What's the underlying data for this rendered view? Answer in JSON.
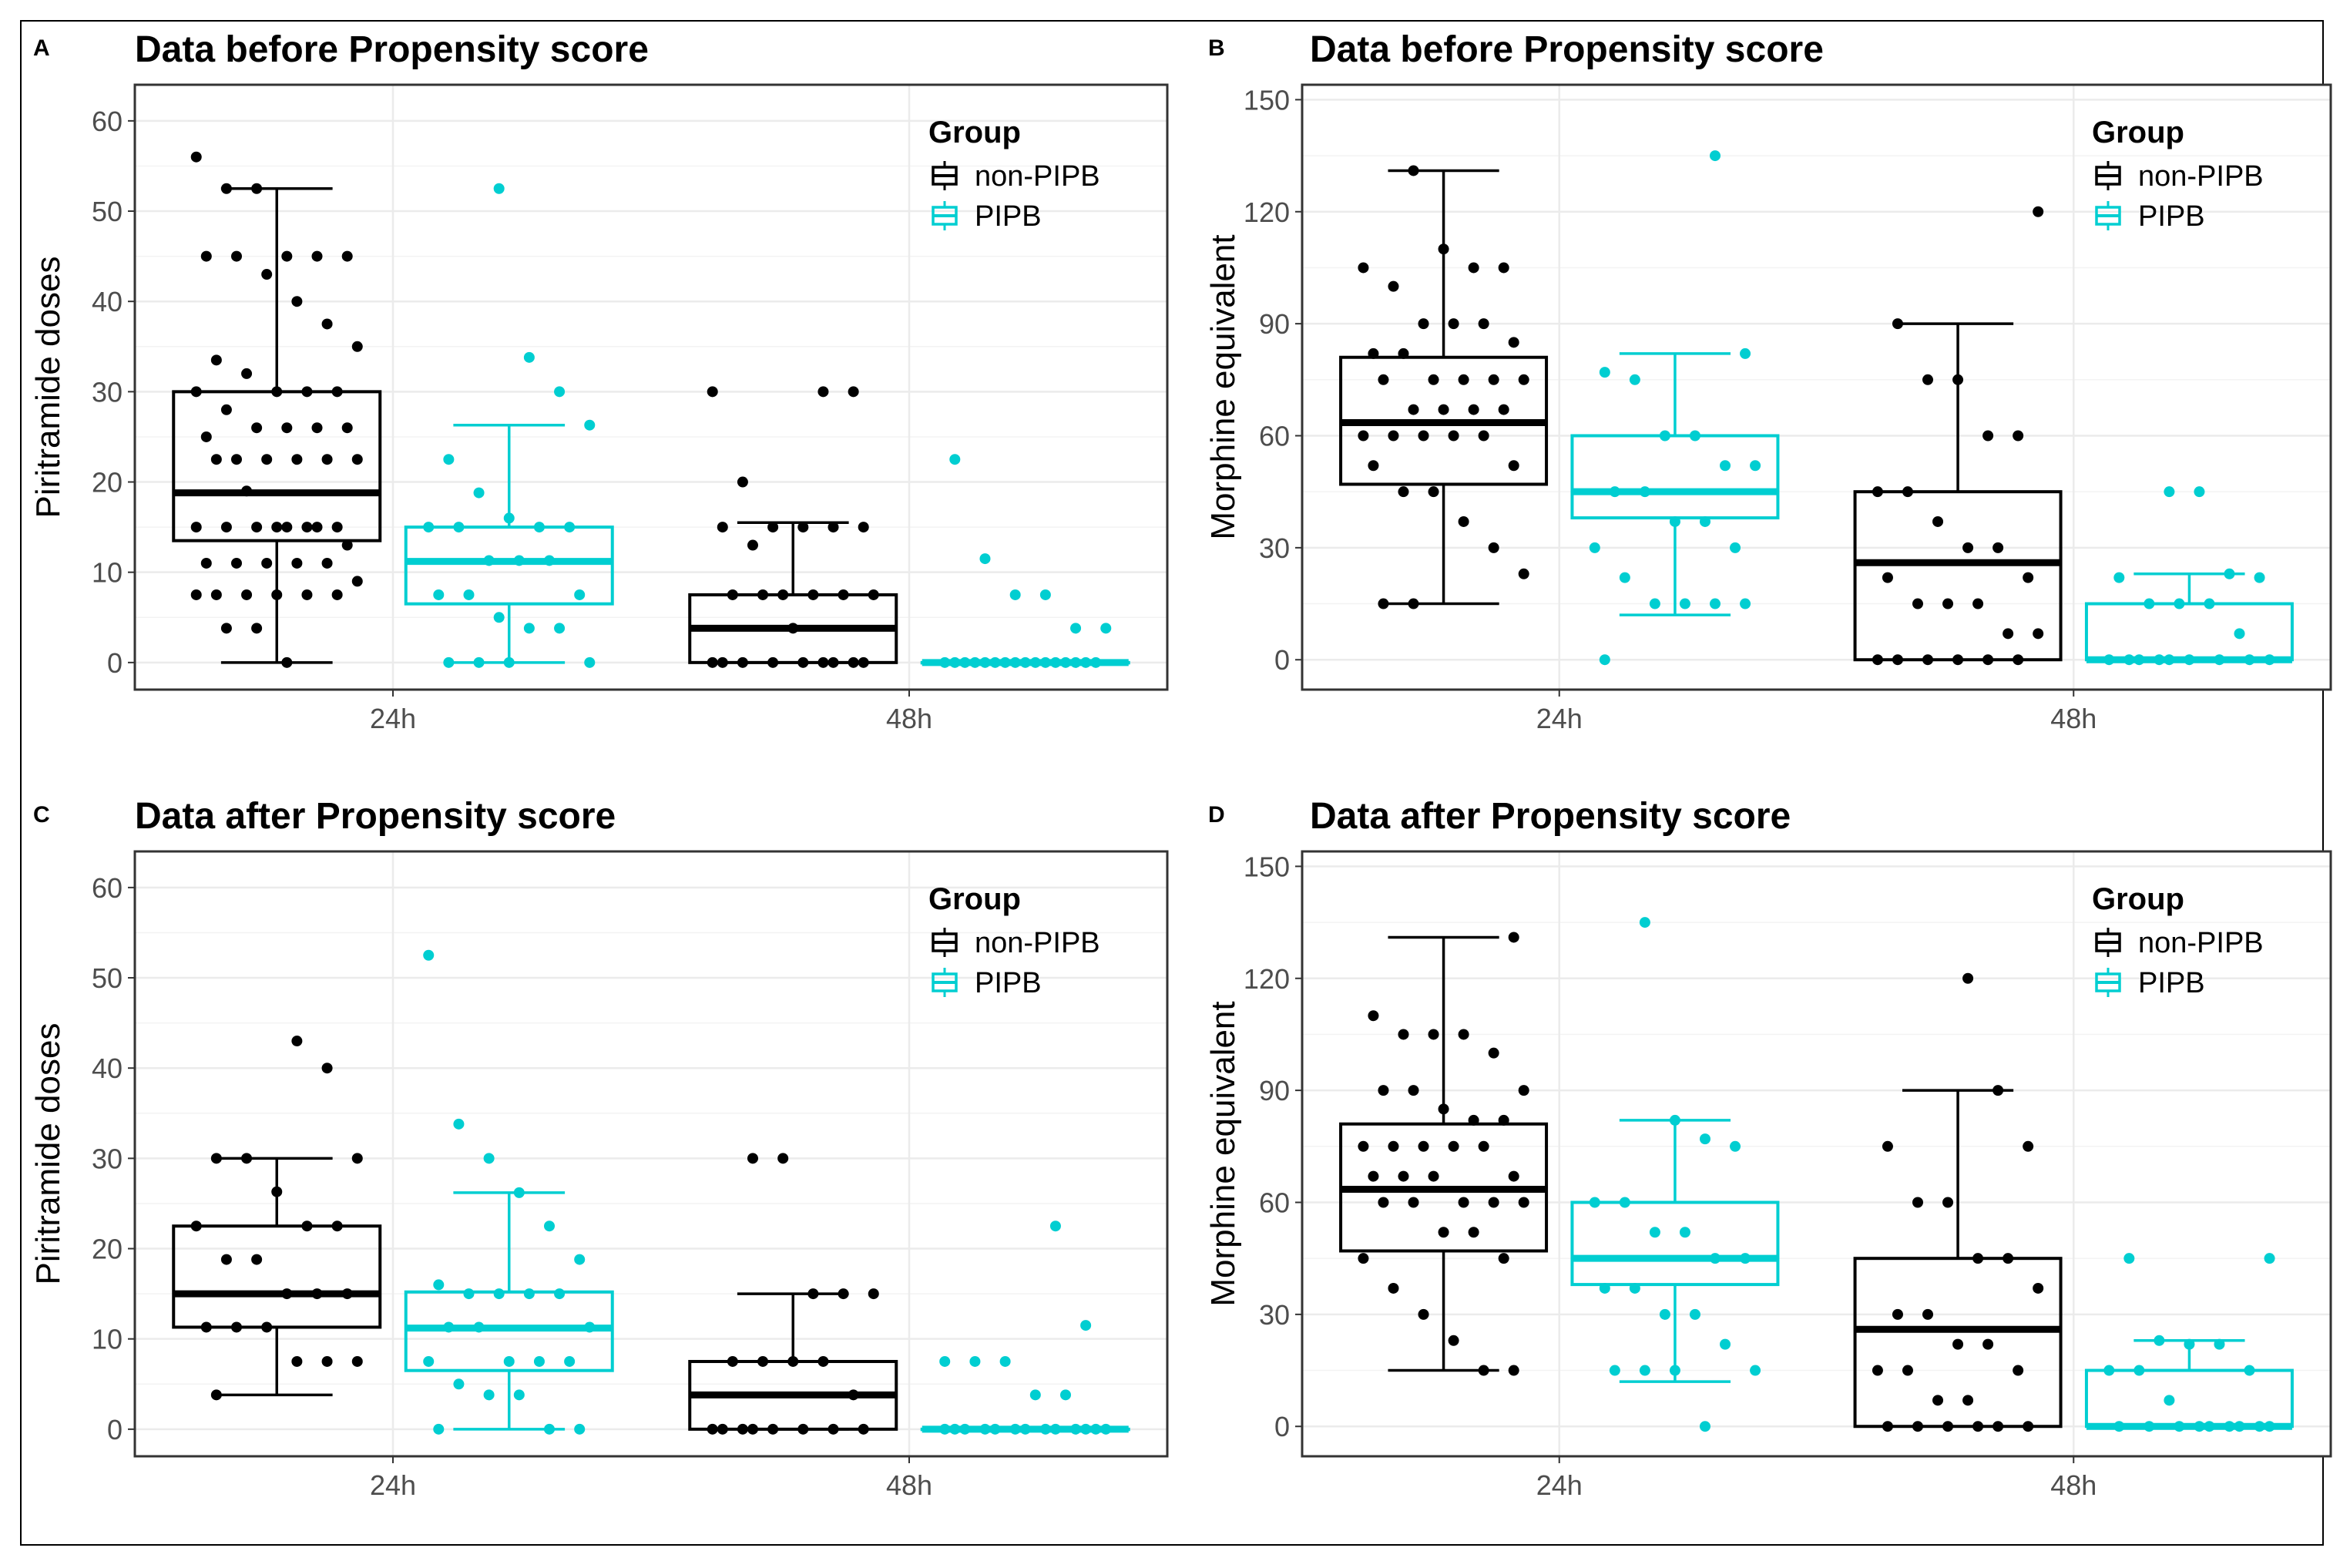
{
  "figure": {
    "legend_title": "Group",
    "groups": [
      {
        "name": "non-PIPB",
        "color": "#000000"
      },
      {
        "name": "PIPB",
        "color": "#00CED1"
      }
    ],
    "panel_background": "#ffffff",
    "grid_color": "#ebebeb",
    "panel_border_color": "#333333",
    "axis_text_color": "#4d4d4d"
  },
  "chart_data": [
    {
      "panel_label": "A",
      "type": "box",
      "title": "Data before Propensity score",
      "xlabel": "",
      "ylabel": "Piritramide doses",
      "categories": [
        "24h",
        "48h"
      ],
      "ylim": [
        -3,
        64
      ],
      "yticks": [
        0,
        10,
        20,
        30,
        40,
        50,
        60
      ],
      "legend_position": "top-right",
      "series": [
        {
          "name": "non-PIPB",
          "boxes": [
            {
              "min": 0,
              "q1": 13.5,
              "median": 18.8,
              "q3": 30,
              "max": 52.5,
              "points": [
                56,
                52.5,
                52.5,
                45,
                45,
                45,
                45,
                45,
                43,
                40,
                37.5,
                35,
                33.5,
                32,
                30,
                30,
                30,
                30,
                28,
                26,
                26,
                26,
                26,
                25,
                22.5,
                22.5,
                22.5,
                22.5,
                22.5,
                22.5,
                19,
                15,
                15,
                15,
                15,
                15,
                15,
                15,
                15,
                13,
                11,
                11,
                11,
                11,
                11,
                9,
                7.5,
                7.5,
                7.5,
                7.5,
                7.5,
                7.5,
                3.8,
                3.8,
                0
              ]
            },
            {
              "min": 0,
              "q1": 0,
              "median": 3.8,
              "q3": 7.5,
              "max": 15.5,
              "points": [
                30,
                30,
                30,
                20,
                15,
                15,
                15,
                15,
                15,
                13,
                7.5,
                7.5,
                7.5,
                7.5,
                7.5,
                7.5,
                3.8,
                0,
                0,
                0,
                0,
                0,
                0,
                0,
                0,
                0
              ]
            }
          ]
        },
        {
          "name": "PIPB",
          "boxes": [
            {
              "min": 0,
              "q1": 6.5,
              "median": 11.2,
              "q3": 15,
              "max": 26.3,
              "points": [
                52.5,
                33.8,
                30,
                26.3,
                22.5,
                18.8,
                16,
                15,
                15,
                15,
                15,
                11.3,
                11.3,
                11.3,
                7.5,
                7.5,
                7.5,
                5,
                3.8,
                3.8,
                0,
                0,
                0,
                0
              ]
            },
            {
              "min": 0,
              "q1": 0,
              "median": 0,
              "q3": 0,
              "max": 0,
              "points": [
                22.5,
                11.5,
                7.5,
                7.5,
                3.8,
                3.8,
                0,
                0,
                0,
                0,
                0,
                0,
                0,
                0,
                0,
                0,
                0,
                0,
                0,
                0,
                0,
                0
              ]
            }
          ]
        }
      ]
    },
    {
      "panel_label": "B",
      "type": "box",
      "title": "Data before Propensity score",
      "xlabel": "",
      "ylabel": "Morphine equivalent",
      "categories": [
        "24h",
        "48h"
      ],
      "ylim": [
        -8,
        154
      ],
      "yticks": [
        0,
        30,
        60,
        90,
        120,
        150
      ],
      "legend_position": "top-right",
      "series": [
        {
          "name": "non-PIPB",
          "boxes": [
            {
              "min": 15,
              "q1": 47,
              "median": 63.5,
              "q3": 81,
              "max": 131,
              "points": [
                131,
                110,
                105,
                105,
                105,
                100,
                90,
                90,
                90,
                85,
                82,
                82,
                75,
                75,
                75,
                75,
                75,
                67,
                67,
                67,
                67,
                60,
                60,
                60,
                60,
                60,
                52,
                52,
                45,
                45,
                37,
                30,
                23,
                15,
                15
              ]
            },
            {
              "min": 0,
              "q1": 0,
              "median": 26,
              "q3": 45,
              "max": 90,
              "points": [
                120,
                90,
                75,
                75,
                60,
                60,
                45,
                45,
                37,
                30,
                30,
                22,
                22,
                15,
                15,
                15,
                7,
                7,
                0,
                0,
                0,
                0,
                0,
                0
              ]
            }
          ]
        },
        {
          "name": "PIPB",
          "boxes": [
            {
              "min": 12,
              "q1": 38,
              "median": 45,
              "q3": 60,
              "max": 82,
              "points": [
                135,
                82,
                77,
                75,
                60,
                60,
                52,
                52,
                45,
                45,
                37,
                37,
                30,
                30,
                22,
                15,
                15,
                15,
                15,
                0
              ]
            },
            {
              "min": 0,
              "q1": 0,
              "median": 0,
              "q3": 15,
              "max": 23,
              "points": [
                45,
                45,
                23,
                22,
                22,
                15,
                15,
                15,
                7,
                0,
                0,
                0,
                0,
                0,
                0,
                0,
                0,
                0
              ]
            }
          ]
        }
      ]
    },
    {
      "panel_label": "C",
      "type": "box",
      "title": "Data after Propensity score",
      "xlabel": "",
      "ylabel": "Piritramide doses",
      "categories": [
        "24h",
        "48h"
      ],
      "ylim": [
        -3,
        64
      ],
      "yticks": [
        0,
        10,
        20,
        30,
        40,
        50,
        60
      ],
      "legend_position": "top-right",
      "series": [
        {
          "name": "non-PIPB",
          "boxes": [
            {
              "min": 3.8,
              "q1": 11.3,
              "median": 15,
              "q3": 22.5,
              "max": 30,
              "points": [
                43,
                40,
                30,
                30,
                30,
                26.3,
                22.5,
                22.5,
                22.5,
                18.8,
                18.8,
                15,
                15,
                15,
                11.3,
                11.3,
                11.3,
                7.5,
                7.5,
                7.5,
                3.8
              ]
            },
            {
              "min": 0,
              "q1": 0,
              "median": 3.8,
              "q3": 7.5,
              "max": 15,
              "points": [
                30,
                30,
                15,
                15,
                15,
                7.5,
                7.5,
                7.5,
                7.5,
                3.8,
                0,
                0,
                0,
                0,
                0,
                0,
                0,
                0
              ]
            }
          ]
        },
        {
          "name": "PIPB",
          "boxes": [
            {
              "min": 0,
              "q1": 6.5,
              "median": 11.2,
              "q3": 15.2,
              "max": 26.2,
              "points": [
                52.5,
                33.8,
                30,
                26.2,
                22.5,
                18.8,
                16,
                15,
                15,
                15,
                15,
                11.3,
                11.3,
                11.3,
                7.5,
                7.5,
                7.5,
                7.5,
                5,
                3.8,
                3.8,
                0,
                0,
                0
              ]
            },
            {
              "min": 0,
              "q1": 0,
              "median": 0,
              "q3": 0,
              "max": 0,
              "points": [
                22.5,
                11.5,
                7.5,
                7.5,
                7.5,
                3.8,
                3.8,
                0,
                0,
                0,
                0,
                0,
                0,
                0,
                0,
                0,
                0,
                0,
                0,
                0
              ]
            }
          ]
        }
      ]
    },
    {
      "panel_label": "D",
      "type": "box",
      "title": "Data after Propensity score",
      "xlabel": "",
      "ylabel": "Morphine equivalent",
      "categories": [
        "24h",
        "48h"
      ],
      "ylim": [
        -8,
        154
      ],
      "yticks": [
        0,
        30,
        60,
        90,
        120,
        150
      ],
      "legend_position": "top-right",
      "series": [
        {
          "name": "non-PIPB",
          "boxes": [
            {
              "min": 15,
              "q1": 47,
              "median": 63.5,
              "q3": 81,
              "max": 131,
              "points": [
                131,
                110,
                105,
                105,
                105,
                100,
                90,
                90,
                90,
                85,
                82,
                82,
                75,
                75,
                75,
                75,
                75,
                67,
                67,
                67,
                67,
                60,
                60,
                60,
                60,
                60,
                52,
                52,
                45,
                45,
                37,
                30,
                23,
                15,
                15
              ]
            },
            {
              "min": 0,
              "q1": 0,
              "median": 26,
              "q3": 45,
              "max": 90,
              "points": [
                120,
                90,
                75,
                75,
                60,
                60,
                45,
                45,
                37,
                30,
                30,
                22,
                22,
                15,
                15,
                15,
                7,
                7,
                0,
                0,
                0,
                0,
                0,
                0
              ]
            }
          ]
        },
        {
          "name": "PIPB",
          "boxes": [
            {
              "min": 12,
              "q1": 38,
              "median": 45,
              "q3": 60,
              "max": 82,
              "points": [
                135,
                82,
                77,
                75,
                60,
                60,
                52,
                52,
                45,
                45,
                37,
                37,
                30,
                30,
                22,
                15,
                15,
                15,
                15,
                0
              ]
            },
            {
              "min": 0,
              "q1": 0,
              "median": 0,
              "q3": 15,
              "max": 23,
              "points": [
                45,
                45,
                23,
                22,
                22,
                15,
                15,
                15,
                7,
                0,
                0,
                0,
                0,
                0,
                0,
                0,
                0,
                0
              ]
            }
          ]
        }
      ]
    }
  ]
}
